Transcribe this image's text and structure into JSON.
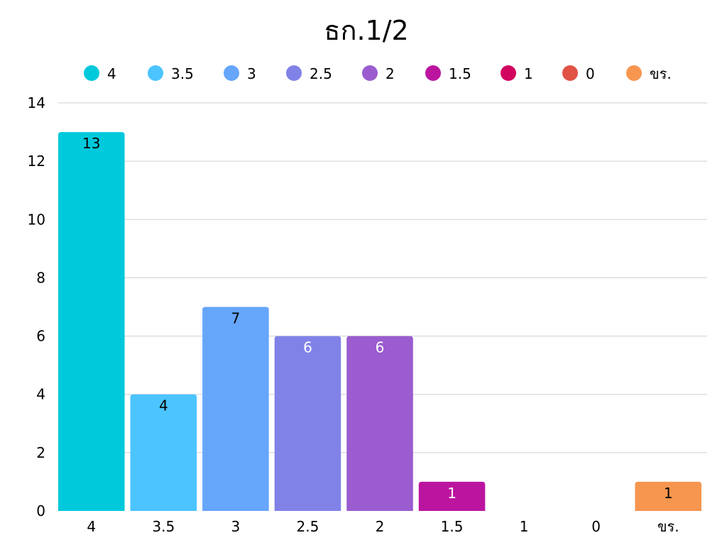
{
  "chart_data": {
    "type": "bar",
    "title": "ธก.1/2",
    "categories": [
      "4",
      "3.5",
      "3",
      "2.5",
      "2",
      "1.5",
      "1",
      "0",
      "ขร."
    ],
    "values": [
      13,
      4,
      7,
      6,
      6,
      1,
      0,
      0,
      1
    ],
    "data_labels": [
      "13",
      "4",
      "7",
      "6",
      "6",
      "1",
      "",
      "",
      "1"
    ],
    "colors": [
      "#00c9db",
      "#4bc4ff",
      "#66a6fb",
      "#8182e8",
      "#9a5ccf",
      "#bb15a0",
      "#d1045f",
      "#e05345",
      "#f7964f"
    ],
    "label_colors": [
      "#000000",
      "#000000",
      "#000000",
      "#ffffff",
      "#ffffff",
      "#ffffff",
      "#ffffff",
      "#ffffff",
      "#000000"
    ],
    "xlabel": "",
    "ylabel": "",
    "ylim": [
      0,
      14
    ],
    "yticks": [
      0,
      2,
      4,
      6,
      8,
      10,
      12,
      14
    ],
    "grid": true,
    "legend": {
      "placement": "top-center",
      "entries": [
        "4",
        "3.5",
        "3",
        "2.5",
        "2",
        "1.5",
        "1",
        "0",
        "ขร."
      ]
    }
  }
}
